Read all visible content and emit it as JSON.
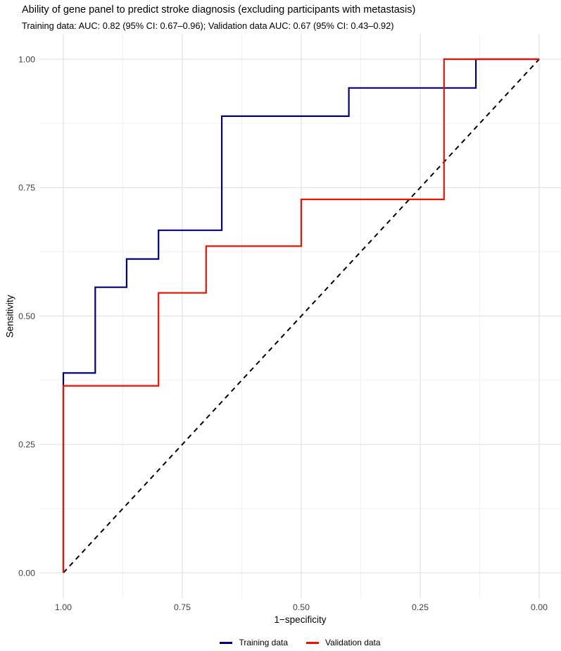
{
  "chart_data": {
    "type": "line",
    "curve_style": "step",
    "title": "Ability of gene panel to predict stroke diagnosis (excluding participants with metastasis)",
    "subtitle": "Training data: AUC: 0.82 (95% CI: 0.67–0.96); Validation data AUC: 0.67 (95% CI: 0.43–0.92)",
    "xlabel": "1−specificity",
    "ylabel": "Sensitivity",
    "x_axis": {
      "reversed": true,
      "range": [
        0,
        1
      ],
      "ticks": [
        1.0,
        0.75,
        0.5,
        0.25,
        0.0
      ],
      "tick_labels": [
        "1.00",
        "0.75",
        "0.50",
        "0.25",
        "0.00"
      ],
      "minor_ticks": [
        0.875,
        0.625,
        0.375,
        0.125
      ]
    },
    "y_axis": {
      "range": [
        0,
        1
      ],
      "ticks": [
        0.0,
        0.25,
        0.5,
        0.75,
        1.0
      ],
      "tick_labels": [
        "0.00",
        "0.25",
        "0.50",
        "0.75",
        "1.00"
      ],
      "minor_ticks": [
        0.875,
        0.625,
        0.375,
        0.125
      ]
    },
    "grid": {
      "on": true,
      "major_color": "#e3e3e3",
      "minor_color": "#f0f0f0"
    },
    "legend_position": "bottom-center",
    "series": [
      {
        "name": "Training data",
        "color": "#000080",
        "auc": 0.82,
        "ci_95": "0.67–0.96",
        "points": [
          [
            1.0,
            0.0
          ],
          [
            1.0,
            0.389
          ],
          [
            0.933,
            0.389
          ],
          [
            0.933,
            0.556
          ],
          [
            0.867,
            0.556
          ],
          [
            0.867,
            0.611
          ],
          [
            0.8,
            0.611
          ],
          [
            0.8,
            0.667
          ],
          [
            0.667,
            0.667
          ],
          [
            0.667,
            0.889
          ],
          [
            0.4,
            0.889
          ],
          [
            0.4,
            0.944
          ],
          [
            0.133,
            0.944
          ],
          [
            0.133,
            1.0
          ],
          [
            0.0,
            1.0
          ]
        ]
      },
      {
        "name": "Validation data",
        "color": "#ee1100",
        "auc": 0.67,
        "ci_95": "0.43–0.92",
        "points": [
          [
            1.0,
            0.0
          ],
          [
            1.0,
            0.364
          ],
          [
            0.8,
            0.364
          ],
          [
            0.8,
            0.545
          ],
          [
            0.7,
            0.545
          ],
          [
            0.7,
            0.636
          ],
          [
            0.5,
            0.636
          ],
          [
            0.5,
            0.727
          ],
          [
            0.2,
            0.727
          ],
          [
            0.2,
            1.0
          ],
          [
            0.0,
            1.0
          ]
        ]
      }
    ],
    "reference_line": {
      "name": "chance-diagonal",
      "style": "dashed",
      "color": "#000000",
      "points": [
        [
          1.0,
          0.0
        ],
        [
          0.0,
          1.0
        ]
      ]
    }
  },
  "legend": {
    "items": [
      {
        "label": "Training data",
        "color": "#000080"
      },
      {
        "label": "Validation data",
        "color": "#ee1100"
      }
    ]
  }
}
